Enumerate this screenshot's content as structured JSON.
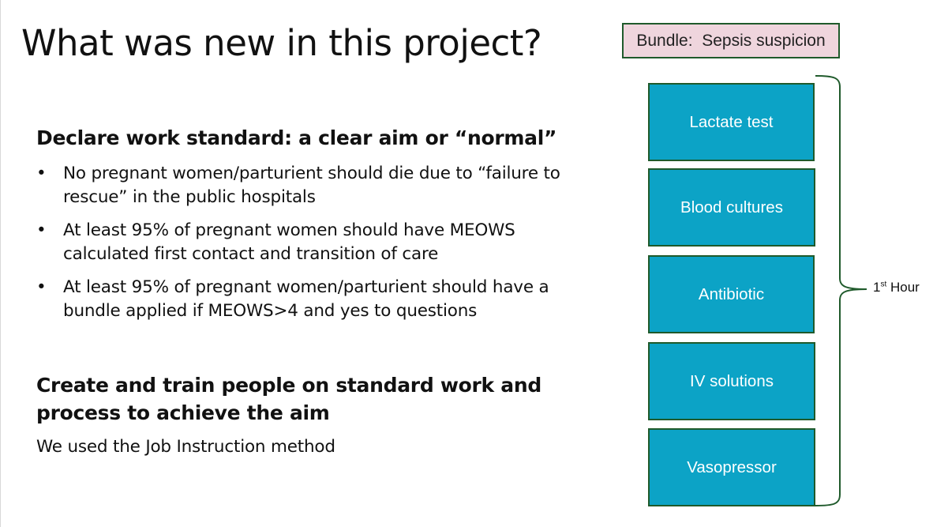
{
  "slide": {
    "title": "What was new in this project?",
    "section1": {
      "heading": "Declare work standard: a clear aim or “normal”",
      "bullets": [
        {
          "marker": "•",
          "text": "No pregnant women/parturient should die due to “failure to rescue” in the public hospitals"
        },
        {
          "marker": "•",
          "text": "At least 95% of pregnant women should have MEOWS calculated first contact and transition of care"
        },
        {
          "marker": "•",
          "text": "At least 95% of pregnant women/parturient should have a bundle applied if MEOWS>4 and yes to questions"
        }
      ]
    },
    "section2": {
      "heading": "Create and train people on standard work and process to achieve the aim",
      "text": "We used the Job Instruction method"
    },
    "bundle": {
      "label": "Bundle:  Sepsis suspicion",
      "steps": [
        "Lactate test",
        "Blood cultures",
        "Antibiotic",
        "IV solutions",
        "Vasopressor"
      ],
      "timeframe_number": "1",
      "timeframe_suffix": "st",
      "timeframe_unit": "Hour"
    }
  },
  "colors": {
    "step_fill": "#0ca3c6",
    "step_border": "#1f5a2b",
    "label_fill": "#efd5dd",
    "brace": "#1f5a2b"
  }
}
